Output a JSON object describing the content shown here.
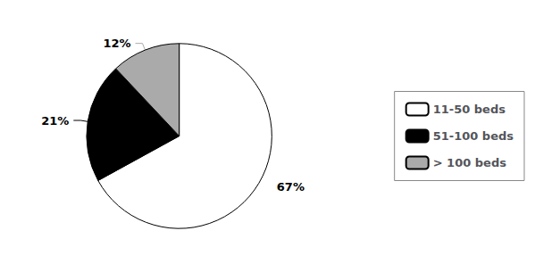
{
  "chart_data": {
    "type": "pie",
    "categories": [
      "11-50 beds",
      "51-100 beds",
      "> 100 beds"
    ],
    "values": [
      67,
      21,
      12
    ],
    "value_labels": [
      "67%",
      "21%",
      "12%"
    ],
    "colors": [
      "white",
      "#000000",
      "#aaaaaa"
    ],
    "data_labels": true,
    "legend": "right"
  }
}
